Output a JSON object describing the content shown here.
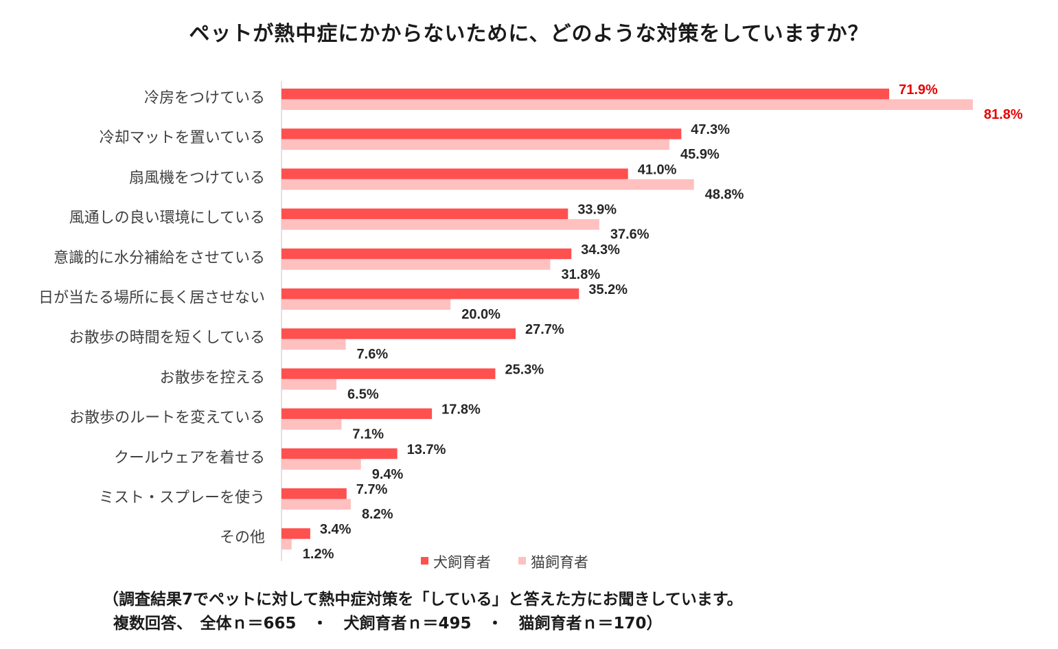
{
  "chart_data": {
    "type": "bar",
    "orientation": "horizontal",
    "title": "ペットが熱中症にかからないために、どのような対策をしていますか？",
    "categories": [
      "冷房をつけている",
      "冷却マットを置いている",
      "扇風機をつけている",
      "風通しの良い環境にしている",
      "意識的に水分補給をさせている",
      "日が当たる場所に長く居させない",
      "お散歩の時間を短くしている",
      "お散歩を控える",
      "お散歩のルートを変えている",
      "クールウェアを着せる",
      "ミスト・スプレーを使う",
      "その他"
    ],
    "series": [
      {
        "name": "犬飼育者",
        "color": "#ff5050",
        "values": [
          71.9,
          47.3,
          41.0,
          33.9,
          34.3,
          35.2,
          27.7,
          25.3,
          17.8,
          13.7,
          7.7,
          3.4
        ],
        "labels": [
          "71.9%",
          "47.3%",
          "41.0%",
          "33.9%",
          "34.3%",
          "35.2%",
          "27.7%",
          "25.3%",
          "17.8%",
          "13.7%",
          "7.7%",
          "3.4%"
        ]
      },
      {
        "name": "猫飼育者",
        "color": "#ffc0c0",
        "values": [
          81.8,
          45.9,
          48.8,
          37.6,
          31.8,
          20.0,
          7.6,
          6.5,
          7.1,
          9.4,
          8.2,
          1.2
        ],
        "labels": [
          "81.8%",
          "45.9%",
          "48.8%",
          "37.6%",
          "31.8%",
          "20.0%",
          "7.6%",
          "6.5%",
          "7.1%",
          "9.4%",
          "8.2%",
          "1.2%"
        ]
      }
    ],
    "highlight_color": "#e60000",
    "highlight_category_index": 0,
    "xlim": [
      0,
      82
    ],
    "grid": false,
    "legend_position": "bottom"
  },
  "footnote": {
    "line1": "（調査結果7でペットに対して熱中症対策を「している」と答えた方にお聞きしています。",
    "line2": "複数回答、　全体ｎ＝665　・　犬飼育者ｎ＝495　・　猫飼育者ｎ＝170）"
  }
}
